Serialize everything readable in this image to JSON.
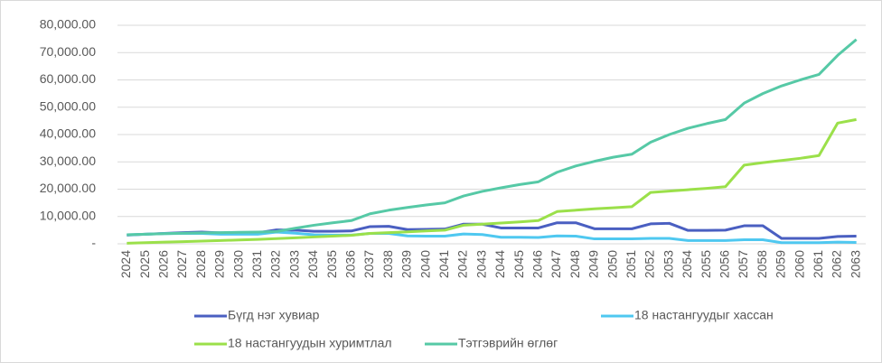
{
  "chart_data": {
    "type": "line",
    "categories": [
      "2024",
      "2025",
      "2026",
      "2027",
      "2028",
      "2029",
      "2030",
      "2031",
      "2032",
      "2033",
      "2034",
      "2035",
      "2036",
      "2037",
      "2038",
      "2039",
      "2040",
      "2041",
      "2042",
      "2043",
      "2044",
      "2045",
      "2046",
      "2047",
      "2048",
      "2049",
      "2050",
      "2051",
      "2052",
      "2053",
      "2054",
      "2055",
      "2056",
      "2057",
      "2058",
      "2059",
      "2060",
      "2061",
      "2062",
      "2063"
    ],
    "series": [
      {
        "name": "Бүгд нэг хувиар",
        "color": "#4a5fc1",
        "values": [
          3200,
          3500,
          3800,
          4100,
          4300,
          4000,
          4000,
          4000,
          5100,
          5000,
          4600,
          4600,
          4700,
          6300,
          6400,
          5200,
          5300,
          5400,
          7200,
          7200,
          5800,
          5800,
          5800,
          7700,
          7700,
          5500,
          5500,
          5500,
          7300,
          7500,
          4900,
          4900,
          5000,
          6600,
          6600,
          2000,
          2000,
          2000,
          2700,
          2800
        ]
      },
      {
        "name": "18 настангуудыг хассан",
        "color": "#4fc8f0",
        "values": [
          3300,
          3500,
          3700,
          3800,
          3800,
          3500,
          3500,
          3500,
          4300,
          3900,
          3300,
          3200,
          3200,
          3800,
          3800,
          2900,
          2800,
          2800,
          3600,
          3400,
          2400,
          2400,
          2300,
          2900,
          2800,
          1800,
          1800,
          1800,
          2000,
          2000,
          1200,
          1200,
          1200,
          1500,
          1500,
          400,
          400,
          400,
          600,
          500
        ]
      },
      {
        "name": "18 настангуудын хуримтлал",
        "color": "#9be04a",
        "values": [
          200,
          400,
          600,
          800,
          1000,
          1200,
          1400,
          1600,
          1900,
          2200,
          2500,
          2800,
          3100,
          3800,
          4100,
          4400,
          4700,
          5000,
          6800,
          7200,
          7600,
          8000,
          8500,
          11800,
          12300,
          12800,
          13200,
          13600,
          18800,
          19300,
          19800,
          20300,
          20900,
          28800,
          29700,
          30500,
          31300,
          32300,
          44200,
          45500
        ]
      },
      {
        "name": "Тэтгэврийн өглөг",
        "color": "#56c9a6",
        "values": [
          3300,
          3500,
          3700,
          3900,
          4000,
          4100,
          4200,
          4300,
          4500,
          5700,
          6800,
          7700,
          8500,
          11000,
          12300,
          13300,
          14200,
          15000,
          17500,
          19200,
          20500,
          21700,
          22700,
          26200,
          28500,
          30200,
          31700,
          32800,
          37200,
          40000,
          42300,
          44000,
          45500,
          51500,
          55000,
          57800,
          60000,
          62000,
          69000,
          74800
        ]
      }
    ],
    "ylim": [
      0,
      80000
    ],
    "yticks": [
      {
        "value": 0,
        "label": "-"
      },
      {
        "value": 10000,
        "label": "10,000.00"
      },
      {
        "value": 20000,
        "label": "20,000.00"
      },
      {
        "value": 30000,
        "label": "30,000.00"
      },
      {
        "value": 40000,
        "label": "40,000.00"
      },
      {
        "value": 50000,
        "label": "50,000.00"
      },
      {
        "value": 60000,
        "label": "60,000.00"
      },
      {
        "value": 70000,
        "label": "70,000.00"
      },
      {
        "value": 80000,
        "label": "80,000.00"
      }
    ],
    "grid": true
  }
}
